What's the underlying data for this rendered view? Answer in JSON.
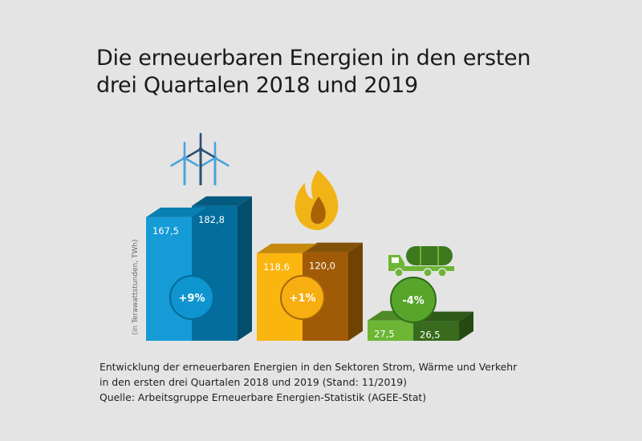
{
  "chart_data": {
    "type": "bar",
    "title": "Die erneuerbaren Energien in den ersten drei Quartalen 2018 und 2019",
    "title_lines": [
      "Die erneuerbaren Energien in den ersten",
      "drei Quartalen 2018 und 2019"
    ],
    "ylabel": "(in Terawattstunden, TWh)",
    "series_names": [
      "2018",
      "2019"
    ],
    "categories": [
      {
        "name": "Strom",
        "icon": "wind-turbines-icon",
        "values": [
          167.5,
          182.8
        ],
        "value_labels": [
          "167,5",
          "182,8"
        ],
        "change": "+9%",
        "colors": {
          "front_2018": "#159bd6",
          "front_2019": "#036e9d",
          "top_2018": "#0a80b2",
          "top_2019": "#045b80",
          "side": "#034d6d",
          "badge_fill": "#0e94cf",
          "badge_stroke": "#046a96"
        }
      },
      {
        "name": "Wärme",
        "icon": "flame-icon",
        "values": [
          118.6,
          120.0
        ],
        "value_labels": [
          "118,6",
          "120,0"
        ],
        "change": "+1%",
        "colors": {
          "front_2018": "#fab50f",
          "front_2019": "#a15b06",
          "top_2018": "#c58a0d",
          "top_2019": "#835008",
          "side": "#6e4304",
          "badge_fill": "#f7ae10",
          "badge_stroke": "#a5660a"
        }
      },
      {
        "name": "Verkehr",
        "icon": "tanker-truck-icon",
        "values": [
          27.5,
          26.5
        ],
        "value_labels": [
          "27,5",
          "26,5"
        ],
        "change": "-4%",
        "colors": {
          "front_2018": "#6db534",
          "front_2019": "#386b1d",
          "top_2018": "#508a26",
          "top_2019": "#2f5a18",
          "side": "#264b12",
          "badge_fill": "#58a52c",
          "badge_stroke": "#2f6b18"
        }
      }
    ]
  },
  "caption": {
    "line1": "Entwicklung der erneuerbaren Energien in den Sektoren Strom, Wärme und Verkehr",
    "line2": "in den ersten drei Quartalen 2018 und 2019 (Stand: 11/2019)",
    "line3": "Quelle: Arbeitsgruppe Erneuerbare Energien-Statistik (AGEE-Stat)"
  }
}
